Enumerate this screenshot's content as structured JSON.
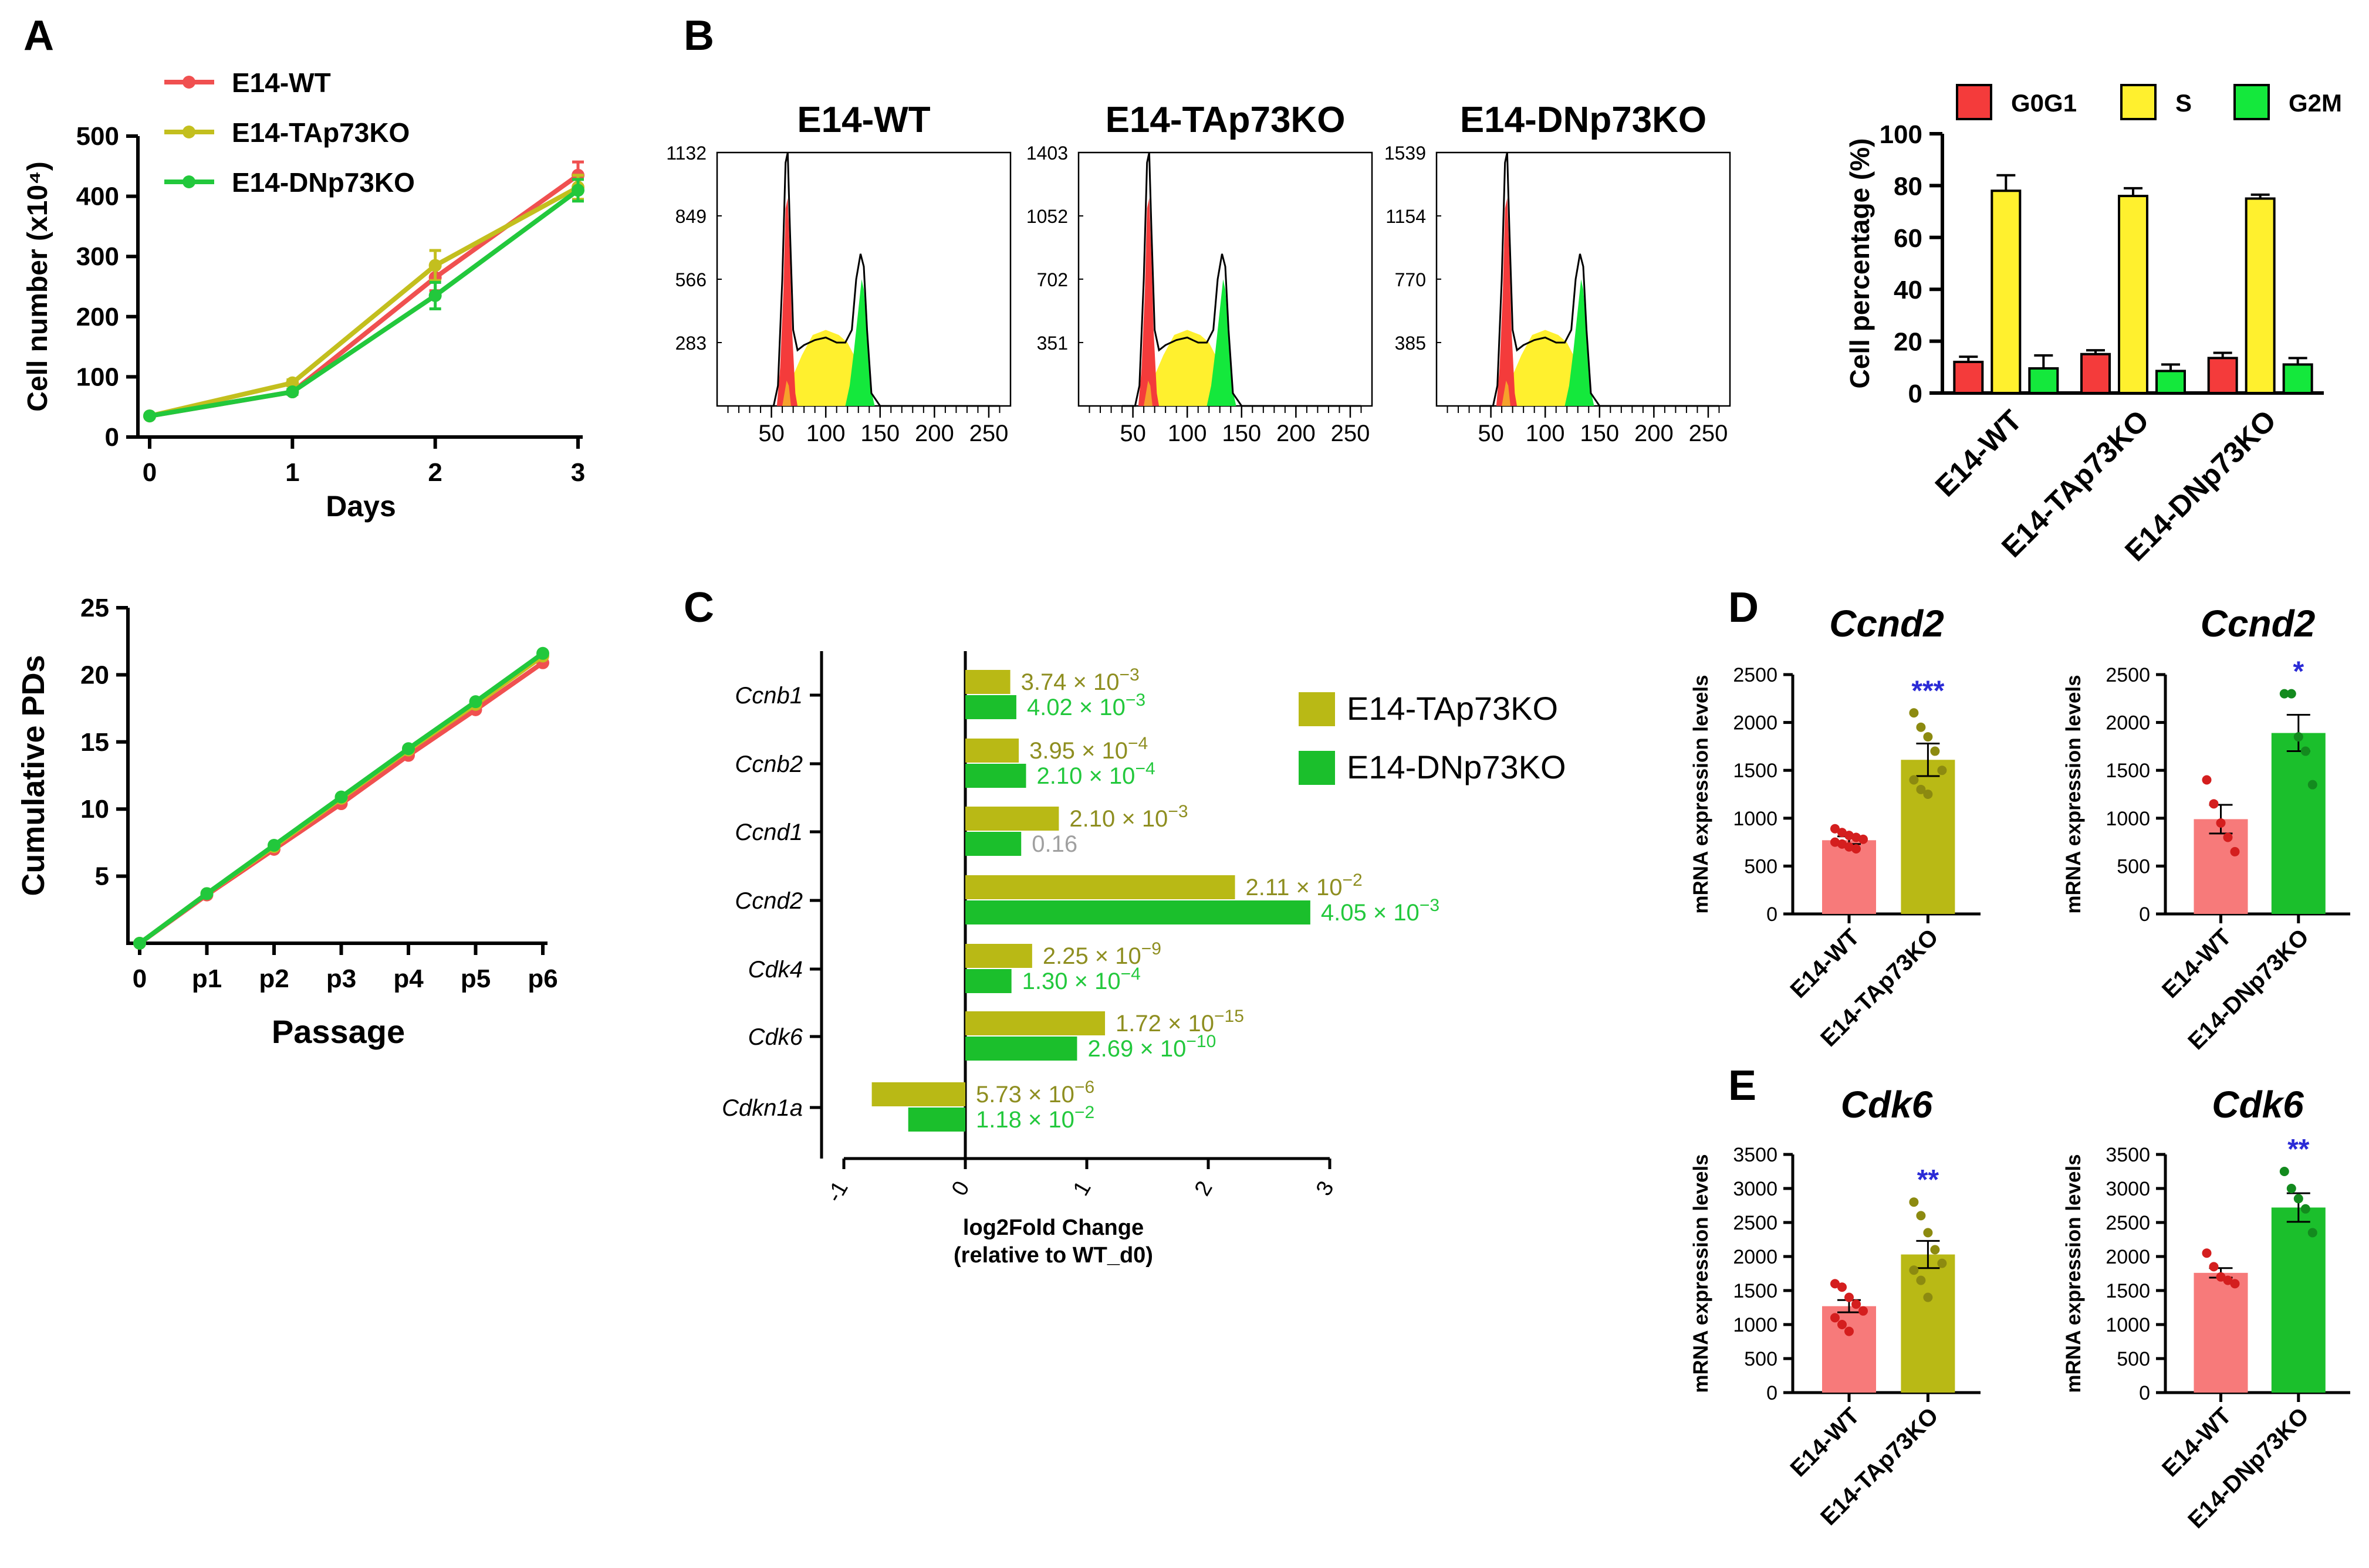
{
  "colors": {
    "wt": "#f05050",
    "tap": "#c3bf1e",
    "dnp": "#22c83c",
    "g0g1": "#f43b3b",
    "s": "#fff02e",
    "g2m": "#14e83c",
    "wt_light": "#f77a7a",
    "tap_bar": "#b9b915",
    "dnp_bar": "#1bbf2c",
    "tap_text": "#8e8e20",
    "dnp_text": "#22c83c",
    "grey_text": "#a0a0a0",
    "sig": "#2b2bd6"
  },
  "panels": {
    "A": "A",
    "B": "B",
    "C": "C",
    "D": "D",
    "E": "E"
  },
  "chart_data": [
    {
      "id": "growth",
      "type": "line",
      "title": "",
      "x": [
        0,
        1,
        2,
        3
      ],
      "xlabel": "Days",
      "ylabel": "Cell number (x10⁴)",
      "ylim": [
        0,
        500
      ],
      "yticks": [
        0,
        100,
        200,
        300,
        400,
        500
      ],
      "series": [
        {
          "name": "E14-WT",
          "values": [
            35,
            75,
            265,
            435
          ],
          "err": [
            3,
            4,
            22,
            22
          ],
          "color": "#f05050"
        },
        {
          "name": "E14-TAp73KO",
          "values": [
            35,
            90,
            285,
            415
          ],
          "err": [
            3,
            5,
            25,
            20
          ],
          "color": "#c3bf1e"
        },
        {
          "name": "E14-DNp73KO",
          "values": [
            35,
            75,
            235,
            410
          ],
          "err": [
            3,
            4,
            22,
            18
          ],
          "color": "#22c83c"
        }
      ]
    },
    {
      "id": "pd",
      "type": "line",
      "categories": [
        "0",
        "p1",
        "p2",
        "p3",
        "p4",
        "p5",
        "p6"
      ],
      "xlabel": "Passage",
      "ylabel": "Cumulative PDs",
      "ylim": [
        0,
        25
      ],
      "yticks": [
        5,
        10,
        15,
        20,
        25
      ],
      "series": [
        {
          "name": "E14-WT",
          "values": [
            0,
            3.6,
            7.0,
            10.4,
            14.0,
            17.4,
            20.9
          ],
          "color": "#f05050"
        },
        {
          "name": "E14-TAp73KO",
          "values": [
            0,
            3.7,
            7.2,
            10.8,
            14.4,
            17.8,
            21.4
          ],
          "color": "#c3bf1e"
        },
        {
          "name": "E14-DNp73KO",
          "values": [
            0,
            3.7,
            7.3,
            10.9,
            14.5,
            18.0,
            21.6
          ],
          "color": "#22c83c"
        }
      ]
    },
    {
      "id": "cellcycle",
      "type": "bar",
      "categories": [
        "E14-WT",
        "E14-TAp73KO",
        "E14-DNp73KO"
      ],
      "ylabel": "Cell percentage (%)",
      "ylim": [
        0,
        100
      ],
      "yticks": [
        0,
        20,
        40,
        60,
        80,
        100
      ],
      "series": [
        {
          "name": "G0G1",
          "values": [
            12,
            15,
            13.5
          ],
          "err": [
            2,
            1.5,
            2
          ],
          "color": "#f43b3b"
        },
        {
          "name": "S",
          "values": [
            78,
            76,
            75
          ],
          "err": [
            6,
            3,
            1.5
          ],
          "color": "#fff02e"
        },
        {
          "name": "G2M",
          "values": [
            9.5,
            8.5,
            11
          ],
          "err": [
            5,
            2.5,
            2.5
          ],
          "color": "#14e83c"
        }
      ]
    },
    {
      "id": "lfc",
      "type": "bar",
      "orientation": "horizontal",
      "categories": [
        "Ccnb1",
        "Ccnb2",
        "Ccnd1",
        "Ccnd2",
        "Cdk4",
        "Cdk6",
        "Cdkn1a"
      ],
      "xlabel": "log2Fold Change",
      "xlabel2": "(relative to WT_d0)",
      "xlim": [
        -1,
        3
      ],
      "xticks": [
        -1,
        0,
        1,
        2,
        3
      ],
      "xtick_labels": [
        "-1",
        "0",
        "1",
        "2",
        "3"
      ],
      "series": [
        {
          "name": "E14-TAp73KO",
          "values": [
            0.37,
            0.44,
            0.77,
            2.22,
            0.55,
            1.15,
            -0.77
          ],
          "padj": [
            {
              "m": "3.74 × 10",
              "e": "−3"
            },
            {
              "m": "3.95 × 10",
              "e": "−4"
            },
            {
              "m": "2.10 × 10",
              "e": "−3"
            },
            {
              "m": "2.11 × 10",
              "e": "−2"
            },
            {
              "m": "2.25 × 10",
              "e": "−9"
            },
            {
              "m": "1.72 × 10",
              "e": "−15"
            },
            {
              "m": "5.73 × 10",
              "e": "−6"
            }
          ],
          "color": "#b9b915"
        },
        {
          "name": "E14-DNp73KO",
          "values": [
            0.42,
            0.5,
            0.46,
            2.84,
            0.38,
            0.92,
            -0.47
          ],
          "padj": [
            {
              "m": "4.02 × 10",
              "e": "−3"
            },
            {
              "m": "2.10 × 10",
              "e": "−4"
            },
            {
              "m": "0.16",
              "e": ""
            },
            {
              "m": "4.05 × 10",
              "e": "−3"
            },
            {
              "m": "1.30 × 10",
              "e": "−4"
            },
            {
              "m": "2.69 × 10",
              "e": "−10"
            },
            {
              "m": "1.18 × 10",
              "e": "−2"
            }
          ],
          "color": "#1bbf2c"
        }
      ]
    },
    {
      "id": "d1",
      "type": "bar",
      "title": "Ccnd2",
      "categories": [
        "E14-WT",
        "E14-TAp73KO"
      ],
      "values": [
        770,
        1610
      ],
      "sem": [
        40,
        170
      ],
      "points": [
        [
          890,
          850,
          820,
          800,
          780,
          750,
          730,
          700,
          680
        ],
        [
          2100,
          1950,
          1850,
          1700,
          1500,
          1400,
          1300,
          1250
        ]
      ],
      "significance": "***",
      "ylabel": "mRNA expression levels",
      "ylim": [
        0,
        2500
      ],
      "yticks": [
        0,
        500,
        1000,
        1500,
        2000,
        2500
      ]
    },
    {
      "id": "d2",
      "type": "bar",
      "title": "Ccnd2",
      "categories": [
        "E14-WT",
        "E14-DNp73KO"
      ],
      "values": [
        990,
        1890
      ],
      "sem": [
        150,
        190
      ],
      "points": [
        [
          1400,
          1150,
          950,
          800,
          650
        ],
        [
          2300,
          2300,
          1850,
          1700,
          1350
        ]
      ],
      "significance": "*",
      "ylabel": "mRNA expression levels",
      "ylim": [
        0,
        2500
      ],
      "yticks": [
        0,
        500,
        1000,
        1500,
        2000,
        2500
      ]
    },
    {
      "id": "e1",
      "type": "bar",
      "title": "Cdk6",
      "categories": [
        "E14-WT",
        "E14-TAp73KO"
      ],
      "values": [
        1270,
        2030
      ],
      "sem": [
        90,
        200
      ],
      "points": [
        [
          1600,
          1550,
          1400,
          1300,
          1200,
          1100,
          1000,
          900
        ],
        [
          2800,
          2600,
          2350,
          2100,
          1900,
          1800,
          1650,
          1400
        ]
      ],
      "significance": "**",
      "ylabel": "mRNA expression levels",
      "ylim": [
        0,
        3500
      ],
      "yticks": [
        0,
        500,
        1000,
        1500,
        2000,
        2500,
        3000,
        3500
      ]
    },
    {
      "id": "e2",
      "type": "bar",
      "title": "Cdk6",
      "categories": [
        "E14-WT",
        "E14-DNp73KO"
      ],
      "values": [
        1760,
        2720
      ],
      "sem": [
        70,
        210
      ],
      "points": [
        [
          2050,
          1850,
          1700,
          1650,
          1600
        ],
        [
          3250,
          3000,
          2850,
          2700,
          2350
        ]
      ],
      "significance": "**",
      "ylabel": "mRNA expression levels",
      "ylim": [
        0,
        3500
      ],
      "yticks": [
        0,
        500,
        1000,
        1500,
        2000,
        2500,
        3000,
        3500
      ]
    },
    {
      "id": "flow",
      "type": "histogram",
      "xticks": [
        50,
        100,
        150,
        200,
        250
      ],
      "xlim": [
        0,
        270
      ],
      "plots": [
        {
          "title": "E14-WT",
          "ymax": 1132,
          "yticks": [
            1132,
            849,
            566,
            283
          ]
        },
        {
          "title": "E14-TAp73KO",
          "ymax": 1403,
          "yticks": [
            1403,
            1052,
            702,
            351
          ]
        },
        {
          "title": "E14-DNp73KO",
          "ymax": 1539,
          "yticks": [
            1539,
            1154,
            770,
            385
          ]
        }
      ]
    }
  ]
}
